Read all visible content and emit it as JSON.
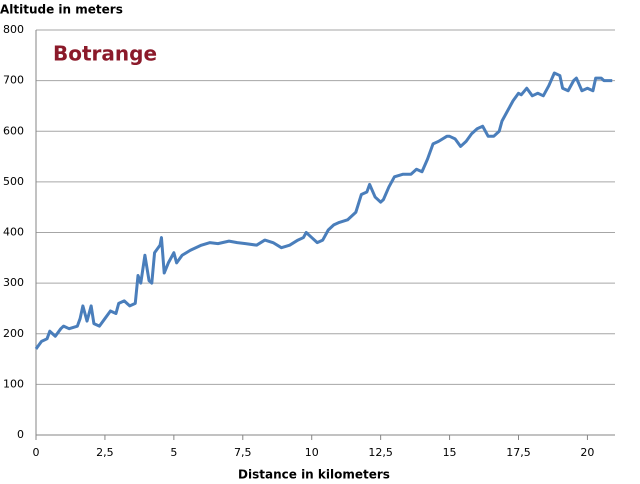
{
  "chart_data": {
    "type": "line",
    "title": "Botrange",
    "title_color": "#8b1a2a",
    "x_label": "Distance in kilometers",
    "y_label": "Altitude in meters",
    "x": [
      0,
      0.2,
      0.4,
      0.5,
      0.7,
      0.9,
      1.0,
      1.2,
      1.5,
      1.6,
      1.7,
      1.85,
      2.0,
      2.1,
      2.3,
      2.5,
      2.7,
      2.9,
      3.0,
      3.2,
      3.4,
      3.6,
      3.7,
      3.8,
      3.95,
      4.1,
      4.2,
      4.3,
      4.5,
      4.55,
      4.65,
      4.8,
      5.0,
      5.1,
      5.3,
      5.6,
      6.0,
      6.3,
      6.6,
      7.0,
      7.3,
      7.6,
      8.0,
      8.3,
      8.6,
      8.9,
      9.2,
      9.5,
      9.7,
      9.8,
      10.0,
      10.2,
      10.4,
      10.6,
      10.8,
      11.0,
      11.3,
      11.6,
      11.8,
      12.0,
      12.1,
      12.3,
      12.5,
      12.6,
      12.8,
      13.0,
      13.3,
      13.6,
      13.8,
      14.0,
      14.2,
      14.4,
      14.6,
      14.9,
      15.0,
      15.2,
      15.4,
      15.6,
      15.8,
      16.0,
      16.2,
      16.4,
      16.6,
      16.8,
      16.9,
      17.1,
      17.3,
      17.5,
      17.6,
      17.8,
      18.0,
      18.2,
      18.4,
      18.6,
      18.8,
      19.0,
      19.1,
      19.3,
      19.5,
      19.6,
      19.8,
      20.0,
      20.2,
      20.3,
      20.5,
      20.6,
      20.8,
      20.9
    ],
    "values": [
      170,
      185,
      190,
      205,
      195,
      210,
      215,
      210,
      215,
      230,
      255,
      225,
      255,
      220,
      215,
      230,
      245,
      240,
      260,
      265,
      255,
      260,
      315,
      300,
      355,
      305,
      300,
      360,
      375,
      390,
      320,
      340,
      360,
      340,
      355,
      365,
      375,
      380,
      378,
      383,
      380,
      378,
      375,
      385,
      380,
      370,
      375,
      385,
      390,
      400,
      390,
      380,
      385,
      405,
      415,
      420,
      425,
      440,
      475,
      480,
      495,
      470,
      460,
      465,
      490,
      510,
      515,
      515,
      525,
      520,
      545,
      575,
      580,
      590,
      590,
      585,
      570,
      580,
      595,
      605,
      610,
      590,
      590,
      600,
      620,
      640,
      660,
      675,
      672,
      685,
      670,
      675,
      670,
      690,
      715,
      710,
      685,
      680,
      700,
      705,
      680,
      685,
      680,
      705,
      705,
      700,
      700,
      700
    ],
    "color": "#4a7ebb",
    "xlim": [
      0,
      21
    ],
    "xticks": [
      0,
      {
        "value": 2.5,
        "label": "2,5"
      },
      5,
      {
        "value": 7.5,
        "label": "7,5"
      },
      10,
      {
        "value": 12.5,
        "label": "12,5"
      },
      15,
      {
        "value": 17.5,
        "label": "17,5"
      },
      20
    ],
    "ylim": [
      0,
      800
    ],
    "yticks": [
      0,
      100,
      200,
      300,
      400,
      500,
      600,
      700,
      800
    ],
    "grid": true
  }
}
